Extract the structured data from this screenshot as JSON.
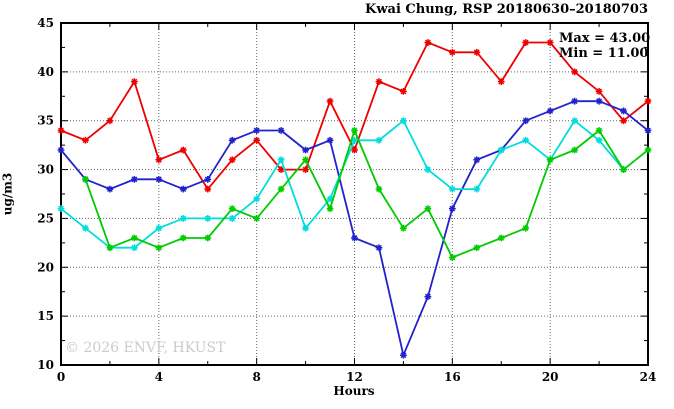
{
  "title": "Kwai Chung, RSP 20180630–20180703",
  "annotation": {
    "max_label": "Max = 43.00",
    "min_label": "Min = 11.00"
  },
  "watermark": "© 2026 ENVF, HKUST",
  "chart_data": {
    "type": "line",
    "title": "Kwai Chung, RSP 20180630–20180703",
    "xlabel": "Hours",
    "ylabel": "ug/m3",
    "xlim": [
      0,
      24
    ],
    "ylim": [
      10,
      45
    ],
    "x_major_ticks": [
      0,
      4,
      8,
      12,
      16,
      20,
      24
    ],
    "x_minor_ticks": [
      2,
      6,
      10,
      14,
      18,
      22
    ],
    "y_major_ticks": [
      10,
      15,
      20,
      25,
      30,
      35,
      40,
      45
    ],
    "y_minor_ticks": [
      12.5,
      17.5,
      22.5,
      27.5,
      32.5,
      37.5,
      42.5
    ],
    "grid": true,
    "grid_x_lines": [
      4,
      8,
      12,
      16,
      20
    ],
    "grid_y_lines": [
      15,
      20,
      25,
      30,
      35,
      40
    ],
    "legend_position": "none",
    "max": 43.0,
    "min": 11.0,
    "marker": "asterisk",
    "series": [
      {
        "name": "day1-red",
        "color": "#ee0000",
        "start_hour": 0,
        "values": [
          34,
          33,
          35,
          39,
          31,
          32,
          28,
          31,
          33,
          30,
          30,
          37,
          32,
          39,
          38,
          43,
          42,
          42,
          39,
          43,
          43,
          40,
          38,
          35,
          37
        ]
      },
      {
        "name": "day2-blue",
        "color": "#2222cc",
        "start_hour": 0,
        "values": [
          32,
          29,
          28,
          29,
          29,
          28,
          29,
          33,
          34,
          34,
          32,
          33,
          23,
          22,
          11,
          17,
          26,
          31,
          32,
          35,
          36,
          37,
          37,
          36,
          34
        ]
      },
      {
        "name": "day3-cyan",
        "color": "#00dddd",
        "start_hour": 0,
        "values": [
          26,
          24,
          22,
          22,
          24,
          25,
          25,
          25,
          27,
          31,
          24,
          27,
          33,
          33,
          35,
          30,
          28,
          28,
          32,
          33,
          31,
          35,
          33,
          30
        ]
      },
      {
        "name": "day4-green",
        "color": "#00cc00",
        "start_hour": 1,
        "values": [
          29,
          22,
          23,
          22,
          23,
          23,
          26,
          25,
          28,
          31,
          26,
          34,
          28,
          24,
          26,
          21,
          22,
          23,
          24,
          31,
          32,
          34,
          30,
          32
        ]
      }
    ]
  }
}
